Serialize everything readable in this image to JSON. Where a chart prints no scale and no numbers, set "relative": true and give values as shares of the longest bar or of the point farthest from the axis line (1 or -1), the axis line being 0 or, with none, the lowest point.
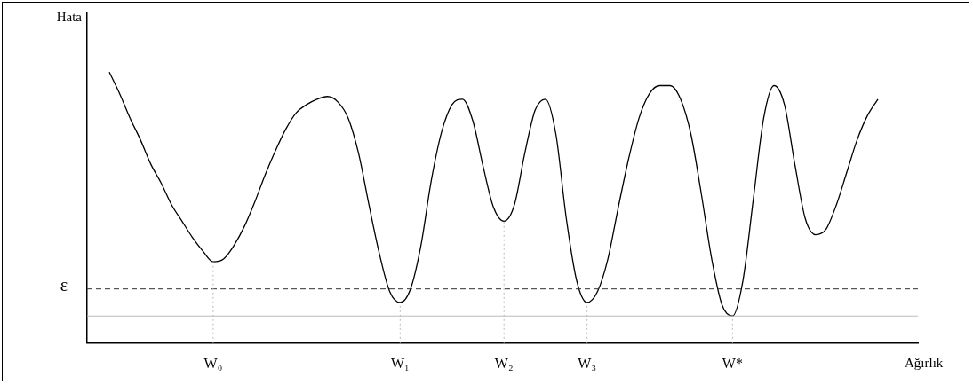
{
  "chart_data": {
    "type": "line",
    "relative": true,
    "ylabel": "Hata",
    "xlabel": "Ağırlık",
    "color": "#000000",
    "legend": false,
    "grid": false,
    "marker": "none",
    "line_style": "solid",
    "categories": [
      null,
      null,
      null,
      null,
      null,
      null,
      null,
      null,
      null,
      null,
      "W₀",
      null,
      null,
      null,
      null,
      null,
      null,
      null,
      null,
      null,
      null,
      null,
      null,
      null,
      null,
      null,
      null,
      null,
      "W₁",
      null,
      null,
      null,
      null,
      null,
      null,
      null,
      null,
      null,
      "W₂",
      null,
      null,
      null,
      null,
      null,
      null,
      null,
      "W₃",
      null,
      null,
      null,
      null,
      null,
      null,
      null,
      null,
      null,
      null,
      null,
      null,
      null,
      "W*",
      null,
      null,
      null,
      null,
      null,
      null,
      null,
      null,
      null,
      null,
      null,
      null,
      null,
      null
    ],
    "values": [
      1.0,
      0.92,
      0.83,
      0.75,
      0.66,
      0.59,
      0.51,
      0.45,
      0.39,
      0.34,
      0.3,
      0.31,
      0.36,
      0.43,
      0.52,
      0.62,
      0.71,
      0.79,
      0.85,
      0.88,
      0.9,
      0.91,
      0.89,
      0.83,
      0.7,
      0.51,
      0.33,
      0.19,
      0.15,
      0.2,
      0.36,
      0.6,
      0.78,
      0.88,
      0.9,
      0.82,
      0.65,
      0.5,
      0.45,
      0.51,
      0.7,
      0.86,
      0.9,
      0.77,
      0.46,
      0.23,
      0.15,
      0.19,
      0.31,
      0.5,
      0.68,
      0.83,
      0.92,
      0.95,
      0.95,
      0.9,
      0.77,
      0.55,
      0.31,
      0.14,
      0.1,
      0.23,
      0.53,
      0.83,
      0.95,
      0.88,
      0.66,
      0.46,
      0.4,
      0.42,
      0.51,
      0.63,
      0.75,
      0.84,
      0.9
    ],
    "ref_lines": [
      {
        "axis": "y",
        "value": 0.2,
        "label": "ε",
        "color": "#333333",
        "line_style": "dashed"
      },
      {
        "axis": "y",
        "value": 0.1,
        "label": null,
        "color": "#bbbbbb",
        "line_style": "solid"
      },
      {
        "axis": "x",
        "value": "W₀",
        "label": null,
        "color": "#bbbbbb",
        "line_style": "dotted"
      },
      {
        "axis": "x",
        "value": "W₁",
        "label": null,
        "color": "#bbbbbb",
        "line_style": "dotted"
      },
      {
        "axis": "x",
        "value": "W₂",
        "label": null,
        "color": "#bbbbbb",
        "line_style": "dotted"
      },
      {
        "axis": "x",
        "value": "W₃",
        "label": null,
        "color": "#bbbbbb",
        "line_style": "dotted"
      },
      {
        "axis": "x",
        "value": "W*",
        "label": null,
        "color": "#bbbbbb",
        "line_style": "dotted"
      }
    ]
  }
}
